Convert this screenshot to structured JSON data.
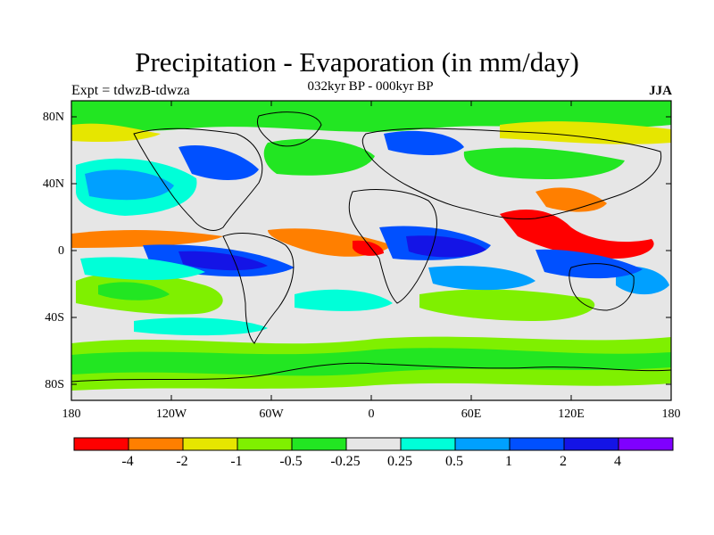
{
  "title": "Precipitation - Evaporation (in mm/day)",
  "subtitle": "032kyr BP - 000kyr BP",
  "left_label": "Expt = tdwzB-tdwza",
  "right_label": "JJA",
  "lat_labels": [
    "80N",
    "40N",
    "0",
    "40S",
    "80S"
  ],
  "lon_labels": [
    "180",
    "120W",
    "60W",
    "0",
    "60E",
    "120E",
    "180"
  ],
  "colorbar": {
    "colors": [
      "#ff0000",
      "#ff7f00",
      "#e6e600",
      "#7ff000",
      "#22e622",
      "#e6e6e6",
      "#00ffd8",
      "#00a0ff",
      "#0050ff",
      "#1414e6",
      "#7f00ff"
    ],
    "labels": [
      "-4",
      "-2",
      "-1",
      "-0.5",
      "-0.25",
      "0.25",
      "0.5",
      "1",
      "2",
      "4"
    ]
  },
  "map_colors": {
    "background": "#e6e6e6",
    "land_outline": "#000000"
  }
}
